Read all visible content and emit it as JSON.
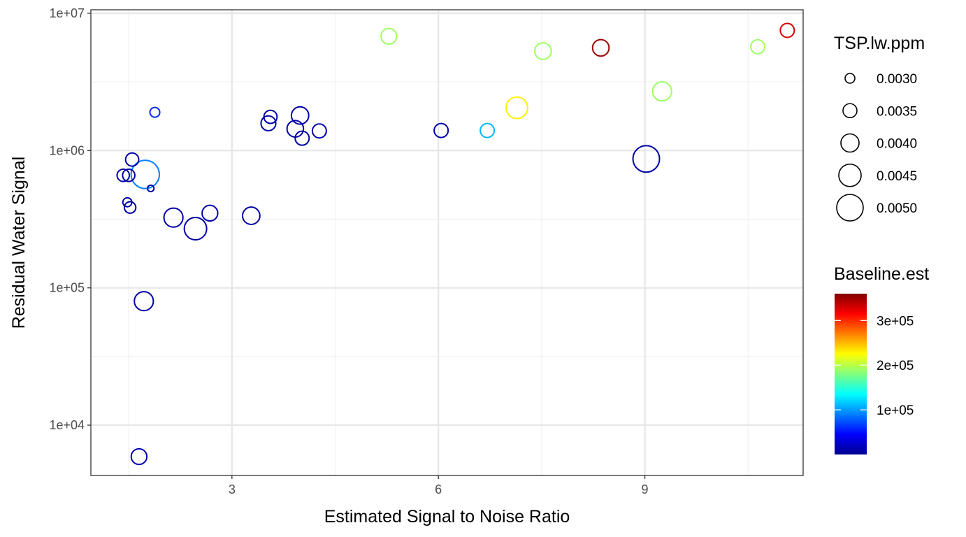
{
  "chart_data": {
    "type": "scatter",
    "xlabel": "Estimated Signal to Noise Ratio",
    "ylabel": "Residual Water Signal",
    "xlim": [
      0.95,
      11.3
    ],
    "ylim": [
      4300,
      10600000
    ],
    "y_scale": "log10",
    "x_ticks": [
      3,
      6,
      9
    ],
    "x_tick_labels": [
      "3",
      "6",
      "9"
    ],
    "y_ticks": [
      10000,
      100000,
      1000000,
      10000000
    ],
    "y_tick_labels": [
      "1e+04",
      "1e+05",
      "1e+06",
      "1e+07"
    ],
    "grid": true,
    "legend_placement": "right",
    "size_legend": {
      "title": "TSP.lw.ppm",
      "values": [
        0.003,
        0.0035,
        0.004,
        0.0045,
        0.005
      ],
      "labels": [
        "0.0030",
        "0.0035",
        "0.0040",
        "0.0045",
        "0.0050"
      ]
    },
    "color_legend": {
      "title": "Baseline.est",
      "min": 0,
      "max": 360000,
      "ticks": [
        100000,
        200000,
        300000
      ],
      "tick_labels": [
        "1e+05",
        "2e+05",
        "3e+05"
      ]
    },
    "points": [
      {
        "x": 1.42,
        "y": 660000,
        "baseline": 10000,
        "tsp": 0.0033
      },
      {
        "x": 1.5,
        "y": 660000,
        "baseline": 10000,
        "tsp": 0.0033
      },
      {
        "x": 1.48,
        "y": 420000,
        "baseline": 10000,
        "tsp": 0.0029
      },
      {
        "x": 1.52,
        "y": 385000,
        "baseline": 10000,
        "tsp": 0.0032
      },
      {
        "x": 1.55,
        "y": 860000,
        "baseline": 10000,
        "tsp": 0.0034
      },
      {
        "x": 1.65,
        "y": 5900,
        "baseline": 10000,
        "tsp": 0.0037
      },
      {
        "x": 1.72,
        "y": 80000,
        "baseline": 10000,
        "tsp": 0.0041
      },
      {
        "x": 1.74,
        "y": 670000,
        "baseline": 90000,
        "tsp": 0.0052
      },
      {
        "x": 1.82,
        "y": 530000,
        "baseline": 10000,
        "tsp": 0.0026
      },
      {
        "x": 1.88,
        "y": 1900000,
        "baseline": 60000,
        "tsp": 0.003
      },
      {
        "x": 2.15,
        "y": 325000,
        "baseline": 10000,
        "tsp": 0.0041
      },
      {
        "x": 2.47,
        "y": 270000,
        "baseline": 10000,
        "tsp": 0.0045
      },
      {
        "x": 2.68,
        "y": 350000,
        "baseline": 10000,
        "tsp": 0.0037
      },
      {
        "x": 3.28,
        "y": 335000,
        "baseline": 10000,
        "tsp": 0.0039
      },
      {
        "x": 3.53,
        "y": 1580000,
        "baseline": 10000,
        "tsp": 0.0036
      },
      {
        "x": 3.56,
        "y": 1760000,
        "baseline": 10000,
        "tsp": 0.0034
      },
      {
        "x": 3.92,
        "y": 1440000,
        "baseline": 10000,
        "tsp": 0.0038
      },
      {
        "x": 3.99,
        "y": 1800000,
        "baseline": 10000,
        "tsp": 0.0039
      },
      {
        "x": 4.02,
        "y": 1230000,
        "baseline": 10000,
        "tsp": 0.0035
      },
      {
        "x": 4.27,
        "y": 1390000,
        "baseline": 10000,
        "tsp": 0.0035
      },
      {
        "x": 5.28,
        "y": 6800000,
        "baseline": 190000,
        "tsp": 0.0037
      },
      {
        "x": 6.04,
        "y": 1400000,
        "baseline": 10000,
        "tsp": 0.0035
      },
      {
        "x": 6.71,
        "y": 1400000,
        "baseline": 110000,
        "tsp": 0.0035
      },
      {
        "x": 7.14,
        "y": 2050000,
        "baseline": 230000,
        "tsp": 0.0044
      },
      {
        "x": 7.52,
        "y": 5300000,
        "baseline": 190000,
        "tsp": 0.0038
      },
      {
        "x": 8.36,
        "y": 5600000,
        "baseline": 350000,
        "tsp": 0.0038
      },
      {
        "x": 9.02,
        "y": 870000,
        "baseline": 10000,
        "tsp": 0.005
      },
      {
        "x": 9.25,
        "y": 2700000,
        "baseline": 190000,
        "tsp": 0.0041
      },
      {
        "x": 10.64,
        "y": 5700000,
        "baseline": 190000,
        "tsp": 0.0035
      },
      {
        "x": 11.07,
        "y": 7500000,
        "baseline": 330000,
        "tsp": 0.0035
      }
    ]
  }
}
